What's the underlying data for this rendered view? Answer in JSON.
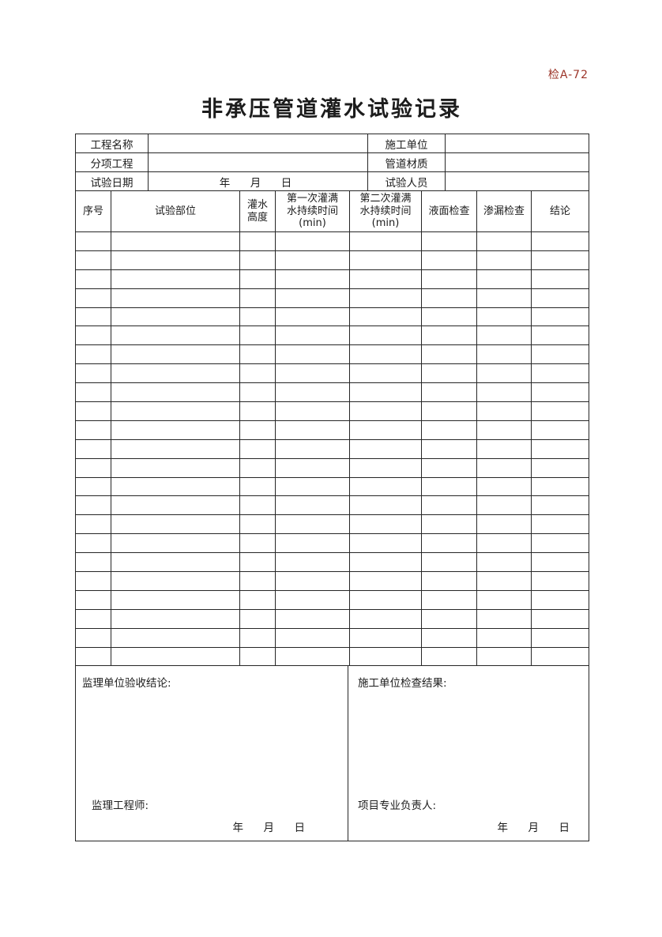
{
  "doc": {
    "code": "检A-72",
    "code_color": "#9c3428",
    "title": "非承压管道灌水试验记录"
  },
  "info": {
    "rows": [
      {
        "label_left": "工程名称",
        "value_left": "",
        "label_right": "施工单位",
        "value_right": ""
      },
      {
        "label_left": "分项工程",
        "value_left": "",
        "label_right": "管道材质",
        "value_right": ""
      },
      {
        "label_left": "试验日期",
        "value_left": "年　月　日",
        "label_right": "试验人员",
        "value_right": ""
      }
    ]
  },
  "table": {
    "headers": [
      "序号",
      "试验部位",
      "灌水\n高度",
      "第一次灌满\n水持续时间\n(min)",
      "第二次灌满\n水持续时间\n(min)",
      "液面检查",
      "渗漏检查",
      "结论"
    ],
    "empty_row_count": 23
  },
  "footer": {
    "left": {
      "conclusion_label": "监理单位验收结论:",
      "signer_label": "监理工程师:",
      "date_label": "年　月　日"
    },
    "right": {
      "conclusion_label": "施工单位检查结果:",
      "signer_label": "项目专业负责人:",
      "date_label": "年　月　日"
    }
  }
}
